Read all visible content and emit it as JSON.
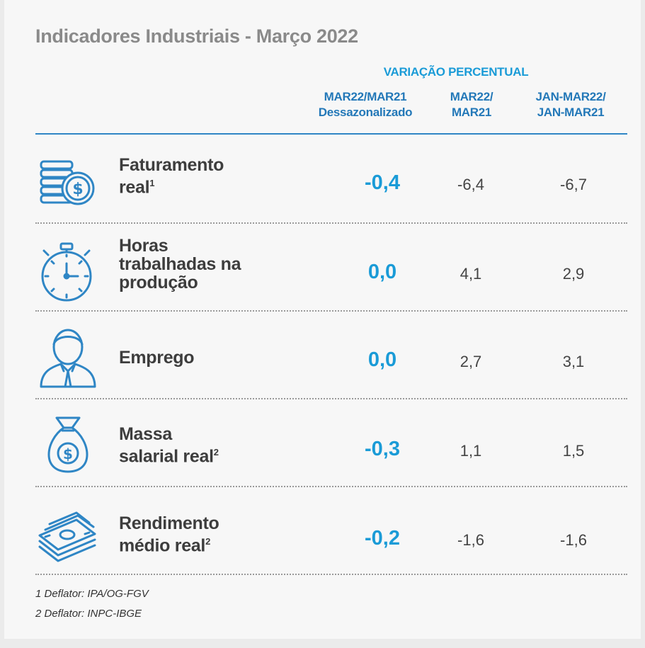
{
  "title": "Indicadores Industriais - Março 2022",
  "header": {
    "group": "VARIAÇÃO PERCENTUAL",
    "col1": [
      "MAR22/MAR21",
      "Dessazonalizado"
    ],
    "col2": [
      "MAR22/",
      "MAR21"
    ],
    "col3": [
      "JAN-MAR22/",
      "JAN-MAR21"
    ]
  },
  "rows": [
    {
      "label": [
        "Faturamento",
        "real"
      ],
      "sup": "1",
      "icon": "coins-icon",
      "c1": "-0,4",
      "c2": "-6,4",
      "c3": "-6,7"
    },
    {
      "label": [
        "Horas",
        "trabalhadas na",
        "produção"
      ],
      "sup": "",
      "icon": "stopwatch-icon",
      "c1": "0,0",
      "c2": "4,1",
      "c3": "2,9"
    },
    {
      "label": [
        "Emprego"
      ],
      "sup": "",
      "icon": "person-icon",
      "c1": "0,0",
      "c2": "2,7",
      "c3": "3,1"
    },
    {
      "label": [
        "Massa",
        "salarial real"
      ],
      "sup": "2",
      "icon": "money-bag-icon",
      "c1": "-0,3",
      "c2": "1,1",
      "c3": "1,5"
    },
    {
      "label": [
        "Rendimento",
        "médio real"
      ],
      "sup": "2",
      "icon": "banknotes-icon",
      "c1": "-0,2",
      "c2": "-1,6",
      "c3": "-1,6"
    }
  ],
  "footnotes": [
    "1 Deflator: IPA/OG-FGV",
    "2 Deflator: INPC-IBGE"
  ],
  "colors": {
    "accent": "#1a9bd7",
    "header": "#2378b8",
    "title": "#8a8a8a"
  }
}
